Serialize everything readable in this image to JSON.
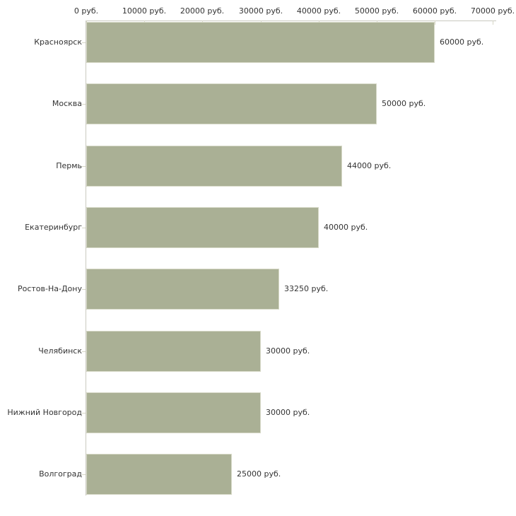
{
  "chart_data": {
    "type": "bar",
    "orientation": "horizontal",
    "title": "",
    "xlabel": "",
    "ylabel": "",
    "unit": "руб.",
    "grid": false,
    "legend": false,
    "xlim": [
      0,
      70600
    ],
    "x_ticks": [
      0,
      10000,
      20000,
      30000,
      40000,
      50000,
      60000,
      70000
    ],
    "x_tick_labels": [
      "0 руб.",
      "10000 руб.",
      "20000 руб.",
      "30000 руб.",
      "40000 руб.",
      "50000 руб.",
      "60000 руб.",
      "70000 руб."
    ],
    "categories": [
      "Красноярск",
      "Москва",
      "Пермь",
      "Екатеринбург",
      "Ростов-На-Дону",
      "Челябинск",
      "Нижний Новгород",
      "Волгоград"
    ],
    "values": [
      60000,
      50000,
      44000,
      40000,
      33250,
      30000,
      30000,
      25000
    ],
    "bar_labels": [
      "60000 руб.",
      "50000 руб.",
      "44000 руб.",
      "40000 руб.",
      "33250 руб.",
      "30000 руб.",
      "30000 руб.",
      "25000 руб."
    ]
  },
  "colors": {
    "background": "#ffffff",
    "bar_fill": "#aab095",
    "bar_border": "#d8dac9",
    "axis_line": "#c9c9c0",
    "tick_mark": "#d6d6c6",
    "text": "#333333"
  }
}
